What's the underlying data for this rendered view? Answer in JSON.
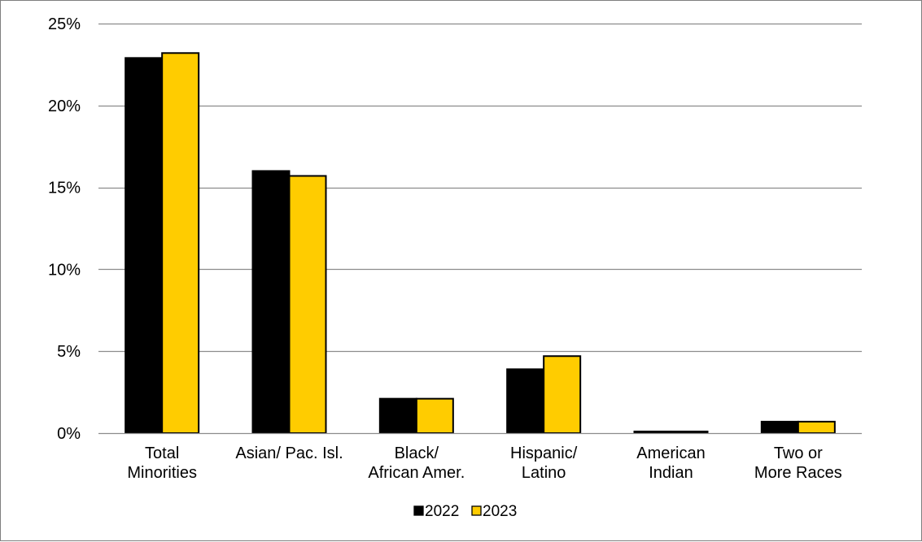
{
  "chart_data": {
    "type": "bar",
    "title": "",
    "xlabel": "",
    "ylabel": "",
    "categories": [
      [
        "Total",
        "Minorities"
      ],
      [
        "Asian/ Pac. Isl."
      ],
      [
        "Black/",
        "African Amer."
      ],
      [
        "Hispanic/",
        "Latino"
      ],
      [
        "American",
        "Indian"
      ],
      [
        "Two or",
        "More Races"
      ]
    ],
    "series": [
      {
        "name": "2022",
        "color": "#000000",
        "values": [
          22.9,
          16.0,
          2.1,
          3.9,
          0.1,
          0.7
        ]
      },
      {
        "name": "2023",
        "color": "#FFCC00",
        "values": [
          23.2,
          15.7,
          2.1,
          4.7,
          0.1,
          0.7
        ]
      }
    ],
    "ylim": [
      0,
      25
    ],
    "yticks": [
      0,
      5,
      10,
      15,
      20,
      25
    ],
    "ytick_labels": [
      "0%",
      "5%",
      "10%",
      "15%",
      "20%",
      "25%"
    ],
    "grid": true,
    "legend_position": "bottom-center"
  }
}
